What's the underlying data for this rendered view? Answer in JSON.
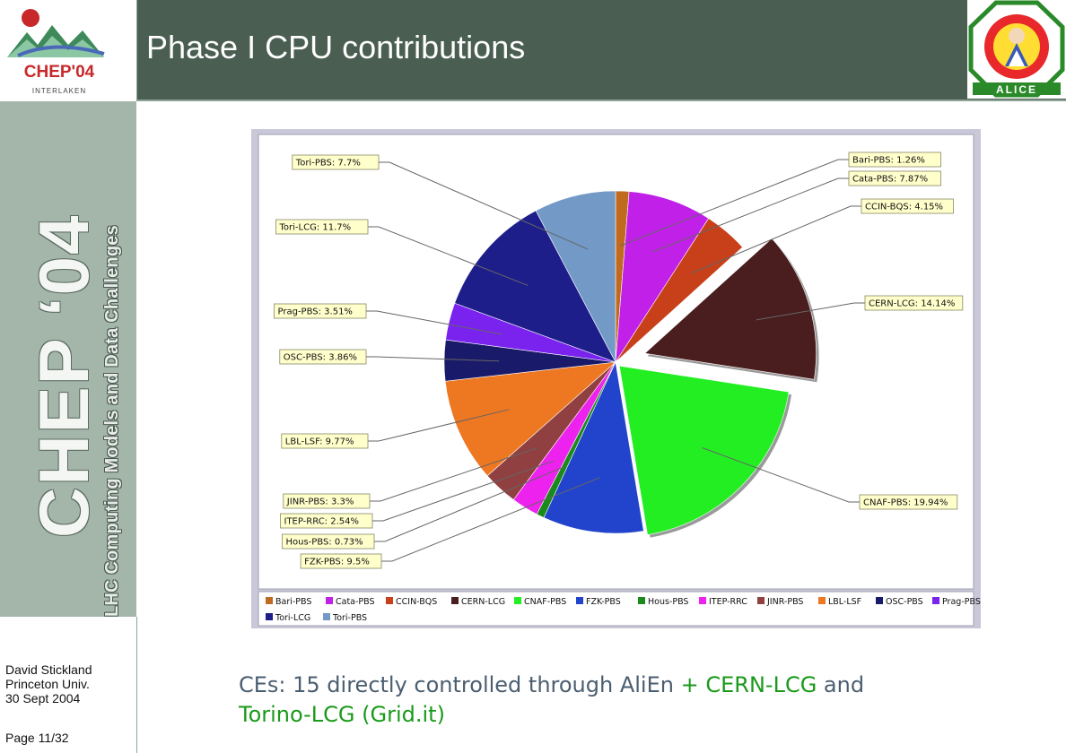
{
  "header": {
    "title": "Phase I CPU contributions"
  },
  "logo": {
    "name": "CHEP'04",
    "subtitle": "INTERLAKEN"
  },
  "sidebar": {
    "big_text": "CHEP ‘04",
    "small_text": "LHC Computing Models and Data Challenges"
  },
  "footer": {
    "author": "David Stickland",
    "affiliation": "Princeton Univ.",
    "date": "30 Sept 2004",
    "page": "Page 11/32"
  },
  "alice_logo": {
    "text": "ALICE"
  },
  "chart_data": {
    "type": "pie",
    "exploded": [
      "CERN-LCG",
      "CNAF-PBS"
    ],
    "slices": [
      {
        "label": "Bari-PBS",
        "value": 1.26,
        "callout": "Bari-PBS: 1.26%",
        "color": "#c06a1f"
      },
      {
        "label": "Cata-PBS",
        "value": 7.87,
        "callout": "Cata-PBS: 7.87%",
        "color": "#c020e8"
      },
      {
        "label": "CCIN-BQS",
        "value": 4.15,
        "callout": "CCIN-BQS: 4.15%",
        "color": "#c8401a"
      },
      {
        "label": "CERN-LCG",
        "value": 14.14,
        "callout": "CERN-LCG: 14.14%",
        "color": "#4a1e1e"
      },
      {
        "label": "CNAF-PBS",
        "value": 19.94,
        "callout": "CNAF-PBS: 19.94%",
        "color": "#22ee22"
      },
      {
        "label": "FZK-PBS",
        "value": 9.5,
        "callout": "FZK-PBS: 9.5%",
        "color": "#2244cc"
      },
      {
        "label": "Hous-PBS",
        "value": 0.73,
        "callout": "Hous-PBS: 0.73%",
        "color": "#1a8a1a"
      },
      {
        "label": "ITEP-RRC",
        "value": 2.54,
        "callout": "ITEP-RRC: 2.54%",
        "color": "#ee22ee"
      },
      {
        "label": "JINR-PBS",
        "value": 3.3,
        "callout": "JINR-PBS: 3.3%",
        "color": "#904040"
      },
      {
        "label": "LBL-LSF",
        "value": 9.77,
        "callout": "LBL-LSF: 9.77%",
        "color": "#ee7722"
      },
      {
        "label": "OSC-PBS",
        "value": 3.86,
        "callout": "OSC-PBS: 3.86%",
        "color": "#1a1a6a"
      },
      {
        "label": "Prag-PBS",
        "value": 3.51,
        "callout": "Prag-PBS: 3.51%",
        "color": "#7a22ee"
      },
      {
        "label": "Tori-LCG",
        "value": 11.7,
        "callout": "Tori-LCG: 11.7%",
        "color": "#1e1e8a"
      },
      {
        "label": "Tori-PBS",
        "value": 7.7,
        "callout": "Tori-PBS: 7.7%",
        "color": "#7399c6"
      }
    ],
    "legend_position": "bottom"
  },
  "bottom": {
    "p1": "CEs: ",
    "p2": "15 directly controlled through AliEn ",
    "p3": "+ ",
    "p4": "CERN-LCG",
    "p5": " and",
    "p6": "Torino-LCG (Grid.it)"
  }
}
